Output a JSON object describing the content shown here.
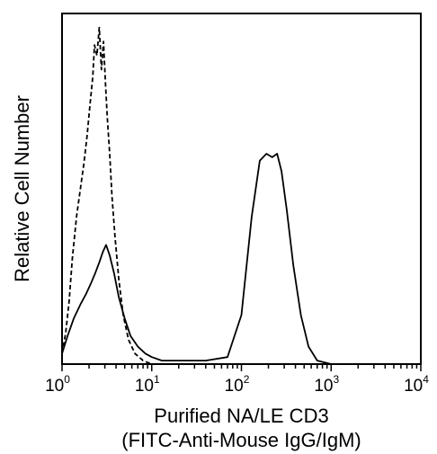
{
  "chart_data": {
    "type": "line",
    "title": "",
    "xlabel_line1": "Purified NA/LE CD3",
    "xlabel_line2": "(FITC-Anti-Mouse IgG/IgM)",
    "ylabel": "Relative Cell Number",
    "xscale": "log",
    "xlim": [
      1,
      10000
    ],
    "ylim": [
      0,
      100
    ],
    "grid": false,
    "legend": "none",
    "x_ticks": [
      {
        "base": "10",
        "exp": "0",
        "value": 1
      },
      {
        "base": "10",
        "exp": "1",
        "value": 10
      },
      {
        "base": "10",
        "exp": "2",
        "value": 100
      },
      {
        "base": "10",
        "exp": "3",
        "value": 1000
      },
      {
        "base": "10",
        "exp": "4",
        "value": 10000
      }
    ],
    "series": [
      {
        "style": "dashed",
        "color": "#000000",
        "x": [
          1.0,
          1.1,
          1.2,
          1.3,
          1.45,
          1.6,
          1.75,
          1.9,
          2.05,
          2.2,
          2.3,
          2.45,
          2.6,
          2.75,
          2.9,
          3.05,
          3.2,
          3.4,
          3.6,
          3.9,
          4.3,
          4.8,
          5.5,
          6.5,
          8,
          10
        ],
        "y": [
          3,
          9,
          18,
          30,
          42,
          50,
          57,
          65,
          74,
          82,
          91,
          88,
          96,
          84,
          92,
          80,
          70,
          60,
          48,
          36,
          24,
          14,
          7,
          3,
          1,
          0
        ]
      },
      {
        "style": "solid",
        "color": "#000000",
        "x": [
          1.0,
          1.15,
          1.35,
          1.6,
          1.85,
          2.1,
          2.35,
          2.6,
          2.85,
          3.1,
          3.4,
          3.8,
          4.3,
          5.0,
          5.8,
          7,
          8.5,
          10,
          13,
          20,
          40,
          70,
          100,
          130,
          160,
          190,
          220,
          250,
          280,
          320,
          380,
          460,
          560,
          700,
          1000
        ],
        "y": [
          3,
          8,
          13,
          17,
          20,
          23,
          26,
          29,
          32,
          34,
          31,
          26,
          19,
          13,
          8,
          5,
          3,
          2,
          1,
          1,
          1,
          2,
          14,
          42,
          58,
          60,
          59,
          60,
          55,
          44,
          28,
          14,
          5,
          1,
          0
        ]
      }
    ]
  }
}
